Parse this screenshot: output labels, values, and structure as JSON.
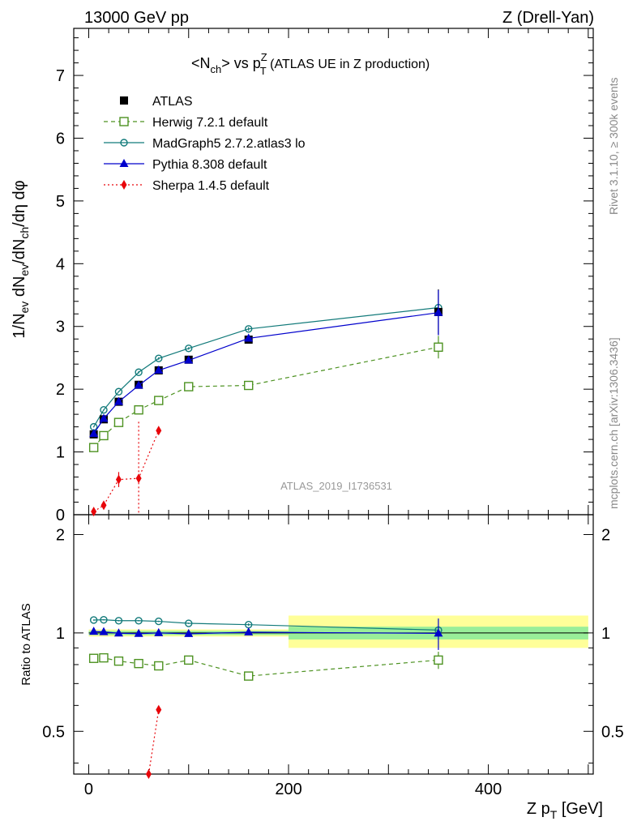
{
  "header": {
    "left": "13000 GeV pp",
    "right": "Z (Drell-Yan)"
  },
  "side_text": {
    "rivet": "Rivet 3.1.10, ≥ 300k events",
    "mcplots": "mcplots.cern.ch [arXiv:1306.3436]"
  },
  "analysis_label": "ATLAS_2019_I1736531",
  "chart_data": [
    {
      "type": "line",
      "panel": "main",
      "title": "<Nch> vs pTZ (ATLAS UE in Z production)",
      "title_parts": {
        "a": "<N",
        "a_sub": "ch",
        "b": "> vs p",
        "b_sup": "Z",
        "b_sub": "T",
        "c": " (ATLAS UE in Z production)"
      },
      "ylabel": "1/Nev dNev/dNch/dη dφ",
      "ylabel_parts": {
        "a": "1/N",
        "a_sub": "ev",
        "b": " dN",
        "b_sub": "ev",
        "c": "/dN",
        "c_sub": "ch",
        "d": "/dη dφ"
      },
      "xlim": [
        -15,
        505
      ],
      "ylim": [
        0,
        7.75
      ],
      "y_ticks": [
        0,
        1,
        2,
        3,
        4,
        5,
        6,
        7
      ],
      "y_tick_labels": [
        "0",
        "1",
        "2",
        "3",
        "4",
        "5",
        "6",
        "7"
      ],
      "legend_position": "top-left",
      "series": [
        {
          "name": "ATLAS",
          "style": "square",
          "color": "#000000",
          "x": [
            5,
            15,
            30,
            50,
            70,
            100,
            160,
            350
          ],
          "y": [
            1.28,
            1.52,
            1.8,
            2.07,
            2.3,
            2.47,
            2.79,
            3.23
          ],
          "yerr": [
            0.02,
            0.02,
            0.02,
            0.03,
            0.03,
            0.04,
            0.05,
            0.36
          ]
        },
        {
          "name": "Herwig 7.2.1 default",
          "style": "open-square",
          "color": "#4d9221",
          "dash": "5,4",
          "x": [
            5,
            15,
            30,
            50,
            70,
            100,
            160,
            350
          ],
          "y": [
            1.07,
            1.26,
            1.47,
            1.67,
            1.82,
            2.04,
            2.06,
            2.67
          ],
          "yerr": [
            0.01,
            0.01,
            0.01,
            0.02,
            0.02,
            0.03,
            0.04,
            0.18
          ]
        },
        {
          "name": "MadGraph5 2.7.2.atlas3 lo",
          "style": "open-circle",
          "color": "#127a7a",
          "x": [
            5,
            15,
            30,
            50,
            70,
            100,
            160,
            350
          ],
          "y": [
            1.4,
            1.67,
            1.96,
            2.27,
            2.49,
            2.65,
            2.96,
            3.3
          ],
          "yerr": [
            0.01,
            0.01,
            0.01,
            0.02,
            0.02,
            0.02,
            0.03,
            0.05
          ]
        },
        {
          "name": "Pythia 8.308 default",
          "style": "triangle",
          "color": "#0000cc",
          "x": [
            5,
            15,
            30,
            50,
            70,
            100,
            160,
            350
          ],
          "y": [
            1.29,
            1.53,
            1.8,
            2.06,
            2.3,
            2.46,
            2.81,
            3.22
          ],
          "yerr": [
            0.01,
            0.01,
            0.01,
            0.02,
            0.02,
            0.02,
            0.03,
            0.36
          ]
        },
        {
          "name": "Sherpa 1.4.5 default",
          "style": "diamond",
          "color": "#e8050a",
          "dash": "2,3",
          "x": [
            5,
            15,
            30,
            50,
            70
          ],
          "y": [
            0.05,
            0.15,
            0.56,
            0.58,
            1.34
          ],
          "yerr": [
            0.02,
            0.05,
            0.12,
            0.9,
            0.05
          ]
        }
      ]
    },
    {
      "type": "line",
      "panel": "ratio",
      "ylabel": "Ratio to ATLAS",
      "xlabel": "Z pT [GeV]",
      "xlabel_parts": {
        "a": "Z p",
        "a_sub": "T",
        "b": " [GeV]"
      },
      "xlim": [
        -15,
        505
      ],
      "ylim": [
        0.37,
        2.3
      ],
      "y_scale": "log",
      "x_ticks": [
        0,
        200,
        400
      ],
      "x_tick_labels": [
        "0",
        "200",
        "400"
      ],
      "y_ticks": [
        0.5,
        1,
        2
      ],
      "y_tick_labels": [
        "0.5",
        "1",
        "2"
      ],
      "uncertainty_bands": [
        {
          "x0": 0,
          "x1": 200,
          "green": [
            0.985,
            1.015
          ],
          "yellow": [
            0.975,
            1.025
          ]
        },
        {
          "x0": 200,
          "x1": 500,
          "green": [
            0.955,
            1.045
          ],
          "yellow": [
            0.9,
            1.13
          ]
        }
      ],
      "series": [
        {
          "name": "Herwig 7.2.1 default",
          "style": "open-square",
          "color": "#4d9221",
          "dash": "5,4",
          "x": [
            5,
            15,
            30,
            50,
            70,
            100,
            160,
            350
          ],
          "y": [
            0.836,
            0.839,
            0.82,
            0.806,
            0.793,
            0.826,
            0.738,
            0.826
          ],
          "yerr": [
            0.01,
            0.01,
            0.01,
            0.01,
            0.01,
            0.01,
            0.015,
            0.05
          ]
        },
        {
          "name": "MadGraph5 2.7.2.atlas3 lo",
          "style": "open-circle",
          "color": "#127a7a",
          "x": [
            5,
            15,
            30,
            50,
            70,
            100,
            160,
            350
          ],
          "y": [
            1.095,
            1.097,
            1.09,
            1.09,
            1.085,
            1.07,
            1.06,
            1.02
          ],
          "yerr": [
            0.005,
            0.005,
            0.005,
            0.005,
            0.005,
            0.005,
            0.01,
            0.02
          ]
        },
        {
          "name": "Pythia 8.308 default",
          "style": "triangle",
          "color": "#0000cc",
          "x": [
            5,
            15,
            30,
            50,
            70,
            100,
            160,
            350
          ],
          "y": [
            1.01,
            1.007,
            0.998,
            0.995,
            1.0,
            0.994,
            1.005,
            0.997
          ],
          "yerr": [
            0.005,
            0.005,
            0.005,
            0.005,
            0.005,
            0.005,
            0.01,
            0.11
          ]
        },
        {
          "name": "Sherpa 1.4.5 default",
          "style": "diamond",
          "color": "#e8050a",
          "dash": "2,3",
          "x": [
            60,
            70
          ],
          "y": [
            0.37,
            0.582
          ],
          "yerr": [
            0,
            0
          ]
        }
      ]
    }
  ]
}
